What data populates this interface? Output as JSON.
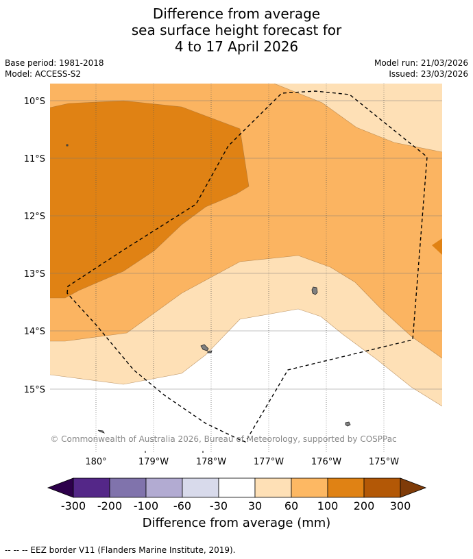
{
  "title": {
    "line1": "Difference from average",
    "line2": "sea surface height forecast for",
    "line3": "4 to 17 April 2026"
  },
  "meta": {
    "base_period": "Base period: 1981-2018",
    "model": "Model: ACCESS-S2",
    "model_run": "Model run: 21/03/2026",
    "issued": "Issued: 23/03/2026"
  },
  "map": {
    "copyright": "© Commonwealth of Australia 2026, Bureau of Meteorology, supported by COSPPac",
    "lat_labels": [
      "10°S",
      "11°S",
      "12°S",
      "13°S",
      "14°S",
      "15°S"
    ],
    "lon_labels": [
      "180°",
      "179°W",
      "178°W",
      "177°W",
      "176°W",
      "175°W"
    ],
    "colors": {
      "band_100_200": "#e08214",
      "band_60_100": "#fbb461",
      "band_30_60": "#fee0b6",
      "band_neutral": "#ffffff",
      "land": "#808080"
    }
  },
  "colorbar": {
    "title": "Difference from average (mm)",
    "ticks": [
      "-300",
      "-200",
      "-100",
      "-60",
      "-30",
      "30",
      "60",
      "100",
      "200",
      "300"
    ],
    "colors": [
      "#2d004b",
      "#542788",
      "#8073ac",
      "#b2abd2",
      "#d8daeb",
      "#ffffff",
      "#fee0b6",
      "#fdb863",
      "#e08214",
      "#b35806",
      "#7f3b08"
    ]
  },
  "footer": {
    "legend": "--  --  -- EEZ border V11 (Flanders Marine Institute, 2019)."
  }
}
